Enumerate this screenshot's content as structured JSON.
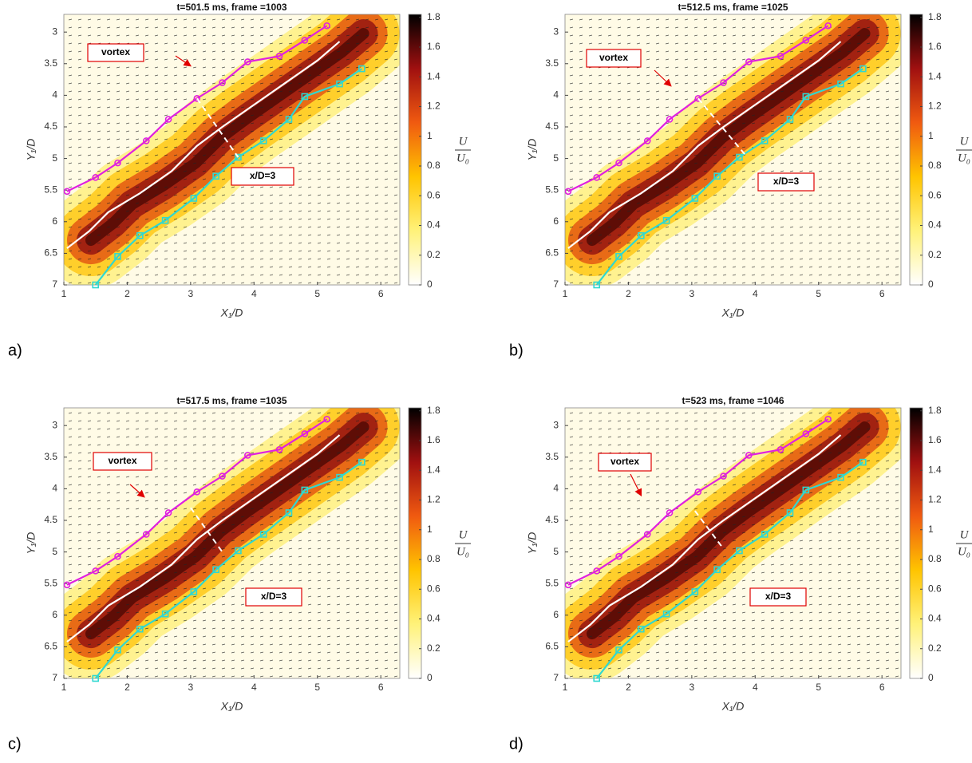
{
  "chart_data": [
    {
      "type": "line",
      "title": "t=501.5 ms, frame =1003",
      "panel_label": "a)",
      "xlabel": "X₁/D",
      "ylabel": "Y₁/D",
      "colorbar_label": {
        "numerator": "U",
        "denominator": "U₀"
      },
      "xlim": [
        1,
        6.3
      ],
      "xticks": [
        1,
        2,
        3,
        4,
        5,
        6
      ],
      "ylim": [
        7,
        2.72
      ],
      "yticks": [
        3,
        3.5,
        4,
        4.5,
        5,
        5.5,
        6,
        6.5,
        7
      ],
      "clim": [
        0,
        1.82
      ],
      "cticks": [
        0,
        0.2,
        0.4,
        0.6,
        0.8,
        1,
        1.2,
        1.4,
        1.6,
        1.8
      ],
      "series": [
        {
          "color": "#e020e0",
          "marker": "circle",
          "x": [
            1.05,
            1.5,
            1.85,
            2.3,
            2.65,
            3.1,
            3.5,
            3.9,
            4.4,
            4.8,
            5.15
          ],
          "values": [
            5.52,
            5.3,
            5.07,
            4.72,
            4.38,
            4.05,
            3.8,
            3.47,
            3.38,
            3.13,
            2.9
          ]
        },
        {
          "color": "#30d8d0",
          "marker": "square",
          "x": [
            1.5,
            1.85,
            2.2,
            2.6,
            3.05,
            3.4,
            3.75,
            4.15,
            4.55,
            4.8,
            5.35,
            5.7
          ],
          "values": [
            7,
            6.55,
            6.22,
            5.98,
            5.63,
            5.28,
            4.98,
            4.72,
            4.38,
            4.02,
            3.82,
            3.58
          ]
        },
        {
          "color": "#ffffff",
          "x": [
            1.05,
            1.4,
            1.7,
            2.2,
            2.7,
            3.1,
            3.5,
            4.0,
            4.5,
            5.0,
            5.35
          ],
          "values": [
            6.42,
            6.15,
            5.85,
            5.55,
            5.2,
            4.8,
            4.5,
            4.15,
            3.8,
            3.45,
            3.15
          ]
        },
        {
          "color": "#ffffff",
          "dash": true,
          "x": [
            3.1,
            3.75
          ],
          "values": [
            4.05,
            4.98
          ]
        }
      ],
      "annotations": [
        {
          "text": "vortex"
        },
        {
          "text": "x/D=3"
        }
      ]
    },
    {
      "type": "line",
      "title": "t=512.5 ms, frame =1025",
      "panel_label": "b)",
      "xlabel": "X₁/D",
      "ylabel": "Y₁/D",
      "colorbar_label": {
        "numerator": "U",
        "denominator": "U₀"
      },
      "xlim": [
        1,
        6.3
      ],
      "xticks": [
        1,
        2,
        3,
        4,
        5,
        6
      ],
      "ylim": [
        7,
        2.72
      ],
      "yticks": [
        3,
        3.5,
        4,
        4.5,
        5,
        5.5,
        6,
        6.5,
        7
      ],
      "clim": [
        0,
        1.82
      ],
      "cticks": [
        0,
        0.2,
        0.4,
        0.6,
        0.8,
        1,
        1.2,
        1.4,
        1.6,
        1.8
      ],
      "series": [
        {
          "color": "#e020e0",
          "marker": "circle",
          "x": [
            1.05,
            1.5,
            1.85,
            2.3,
            2.65,
            3.1,
            3.5,
            3.9,
            4.4,
            4.8,
            5.15
          ],
          "values": [
            5.52,
            5.3,
            5.07,
            4.72,
            4.38,
            4.05,
            3.8,
            3.47,
            3.38,
            3.13,
            2.9
          ]
        },
        {
          "color": "#30d8d0",
          "marker": "square",
          "x": [
            1.5,
            1.85,
            2.2,
            2.6,
            3.05,
            3.4,
            3.75,
            4.15,
            4.55,
            4.8,
            5.35,
            5.7
          ],
          "values": [
            7,
            6.55,
            6.22,
            5.98,
            5.63,
            5.28,
            4.98,
            4.72,
            4.38,
            4.02,
            3.82,
            3.58
          ]
        },
        {
          "color": "#ffffff",
          "x": [
            1.05,
            1.4,
            1.7,
            2.2,
            2.7,
            3.1,
            3.5,
            4.0,
            4.5,
            5.0,
            5.35
          ],
          "values": [
            6.42,
            6.15,
            5.85,
            5.55,
            5.2,
            4.8,
            4.5,
            4.15,
            3.8,
            3.45,
            3.15
          ]
        },
        {
          "color": "#ffffff",
          "dash": true,
          "x": [
            3.1,
            3.85
          ],
          "values": [
            4.05,
            4.95
          ]
        }
      ],
      "annotations": [
        {
          "text": "vortex"
        },
        {
          "text": "x/D=3"
        }
      ]
    },
    {
      "type": "line",
      "title": "t=517.5 ms, frame =1035",
      "panel_label": "c)",
      "xlabel": "X₁/D",
      "ylabel": "Y₁/D",
      "colorbar_label": {
        "numerator": "U",
        "denominator": "U₀"
      },
      "xlim": [
        1,
        6.3
      ],
      "xticks": [
        1,
        2,
        3,
        4,
        5,
        6
      ],
      "ylim": [
        7,
        2.72
      ],
      "yticks": [
        3,
        3.5,
        4,
        4.5,
        5,
        5.5,
        6,
        6.5,
        7
      ],
      "clim": [
        0,
        1.82
      ],
      "cticks": [
        0,
        0.2,
        0.4,
        0.6,
        0.8,
        1,
        1.2,
        1.4,
        1.6,
        1.8
      ],
      "series": [
        {
          "color": "#e020e0",
          "marker": "circle",
          "x": [
            1.05,
            1.5,
            1.85,
            2.3,
            2.65,
            3.1,
            3.5,
            3.9,
            4.4,
            4.8,
            5.15
          ],
          "values": [
            5.52,
            5.3,
            5.07,
            4.72,
            4.38,
            4.05,
            3.8,
            3.47,
            3.38,
            3.13,
            2.9
          ]
        },
        {
          "color": "#30d8d0",
          "marker": "square",
          "x": [
            1.5,
            1.85,
            2.2,
            2.6,
            3.05,
            3.4,
            3.75,
            4.15,
            4.55,
            4.8,
            5.35,
            5.7
          ],
          "values": [
            7,
            6.55,
            6.22,
            5.98,
            5.63,
            5.28,
            4.98,
            4.72,
            4.38,
            4.02,
            3.82,
            3.58
          ]
        },
        {
          "color": "#ffffff",
          "x": [
            1.05,
            1.4,
            1.7,
            2.2,
            2.7,
            3.1,
            3.5,
            4.0,
            4.5,
            5.0,
            5.35
          ],
          "values": [
            6.42,
            6.15,
            5.85,
            5.55,
            5.2,
            4.8,
            4.5,
            4.15,
            3.8,
            3.45,
            3.15
          ]
        },
        {
          "color": "#ffffff",
          "dash": true,
          "x": [
            3.0,
            3.5
          ],
          "values": [
            4.3,
            5.0
          ]
        }
      ],
      "annotations": [
        {
          "text": "vortex"
        },
        {
          "text": "x/D=3"
        }
      ]
    },
    {
      "type": "line",
      "title": "t=523 ms, frame =1046",
      "panel_label": "d)",
      "xlabel": "X₁/D",
      "ylabel": "Y₁/D",
      "colorbar_label": {
        "numerator": "U",
        "denominator": "U₀"
      },
      "xlim": [
        1,
        6.3
      ],
      "xticks": [
        1,
        2,
        3,
        4,
        5,
        6
      ],
      "ylim": [
        7,
        2.72
      ],
      "yticks": [
        3,
        3.5,
        4,
        4.5,
        5,
        5.5,
        6,
        6.5,
        7
      ],
      "clim": [
        0,
        1.82
      ],
      "cticks": [
        0,
        0.2,
        0.4,
        0.6,
        0.8,
        1,
        1.2,
        1.4,
        1.6,
        1.8
      ],
      "series": [
        {
          "color": "#e020e0",
          "marker": "circle",
          "x": [
            1.05,
            1.5,
            1.85,
            2.3,
            2.65,
            3.1,
            3.5,
            3.9,
            4.4,
            4.8,
            5.15
          ],
          "values": [
            5.52,
            5.3,
            5.07,
            4.72,
            4.38,
            4.05,
            3.8,
            3.47,
            3.38,
            3.13,
            2.9
          ]
        },
        {
          "color": "#30d8d0",
          "marker": "square",
          "x": [
            1.5,
            1.85,
            2.2,
            2.6,
            3.05,
            3.4,
            3.75,
            4.15,
            4.55,
            4.8,
            5.35,
            5.7
          ],
          "values": [
            7,
            6.55,
            6.22,
            5.98,
            5.63,
            5.28,
            4.98,
            4.72,
            4.38,
            4.02,
            3.82,
            3.58
          ]
        },
        {
          "color": "#ffffff",
          "x": [
            1.05,
            1.4,
            1.7,
            2.2,
            2.7,
            3.1,
            3.5,
            4.0,
            4.5,
            5.0,
            5.35
          ],
          "values": [
            6.42,
            6.15,
            5.85,
            5.55,
            5.2,
            4.8,
            4.5,
            4.15,
            3.8,
            3.45,
            3.15
          ]
        },
        {
          "color": "#ffffff",
          "dash": true,
          "x": [
            3.05,
            3.5
          ],
          "values": [
            4.35,
            4.95
          ]
        }
      ],
      "annotations": [
        {
          "text": "vortex"
        },
        {
          "text": "x/D=3"
        }
      ]
    }
  ]
}
